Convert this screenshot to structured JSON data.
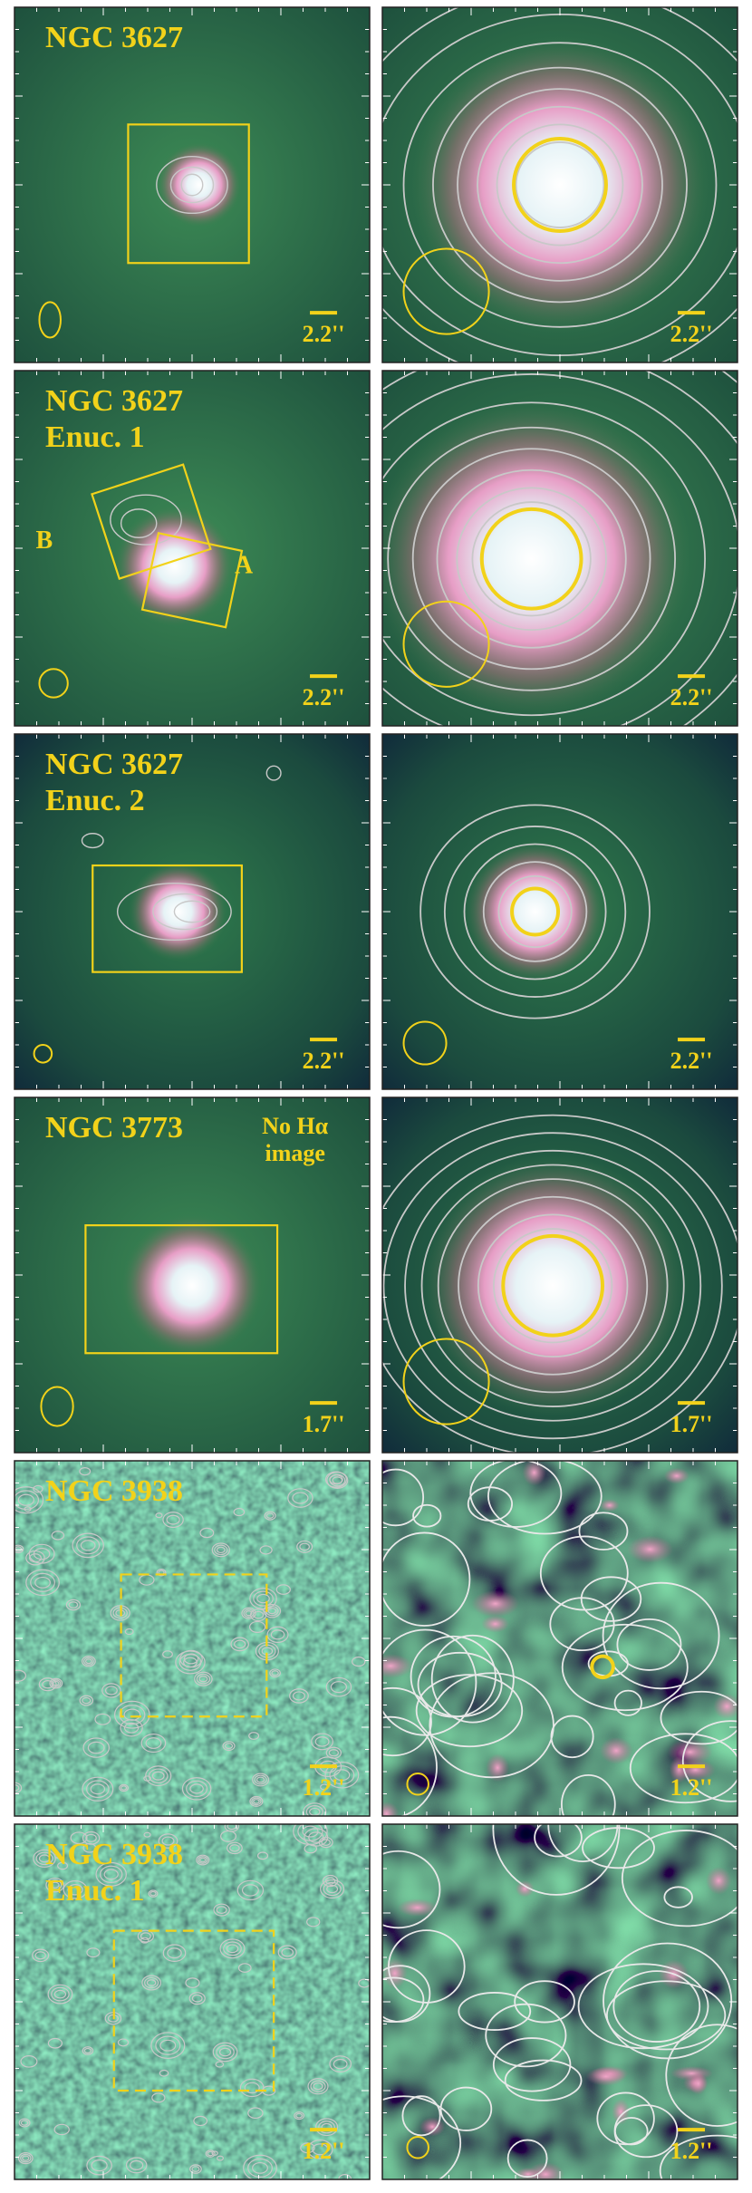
{
  "rows": [
    {
      "title": "NGC 3627",
      "left_scale": "2.2''",
      "right_scale": "2.2''"
    },
    {
      "title": "NGC 3627",
      "subtitle": "Enuc. 1",
      "labels": [
        "B",
        "A"
      ],
      "left_scale": "2.2''",
      "right_scale": "2.2''"
    },
    {
      "title": "NGC 3627",
      "subtitle": "Enuc. 2",
      "left_scale": "2.2''",
      "right_scale": "2.2''"
    },
    {
      "title": "NGC 3773",
      "note": [
        "No Hα",
        "image"
      ],
      "left_scale": "1.7''",
      "right_scale": "1.7''"
    },
    {
      "title": "NGC 3938",
      "left_scale": "1.2''",
      "right_scale": "1.2''"
    },
    {
      "title": "NGC 3938",
      "subtitle": "Enuc. 1",
      "left_scale": "1.2''",
      "right_scale": "1.2''"
    }
  ]
}
